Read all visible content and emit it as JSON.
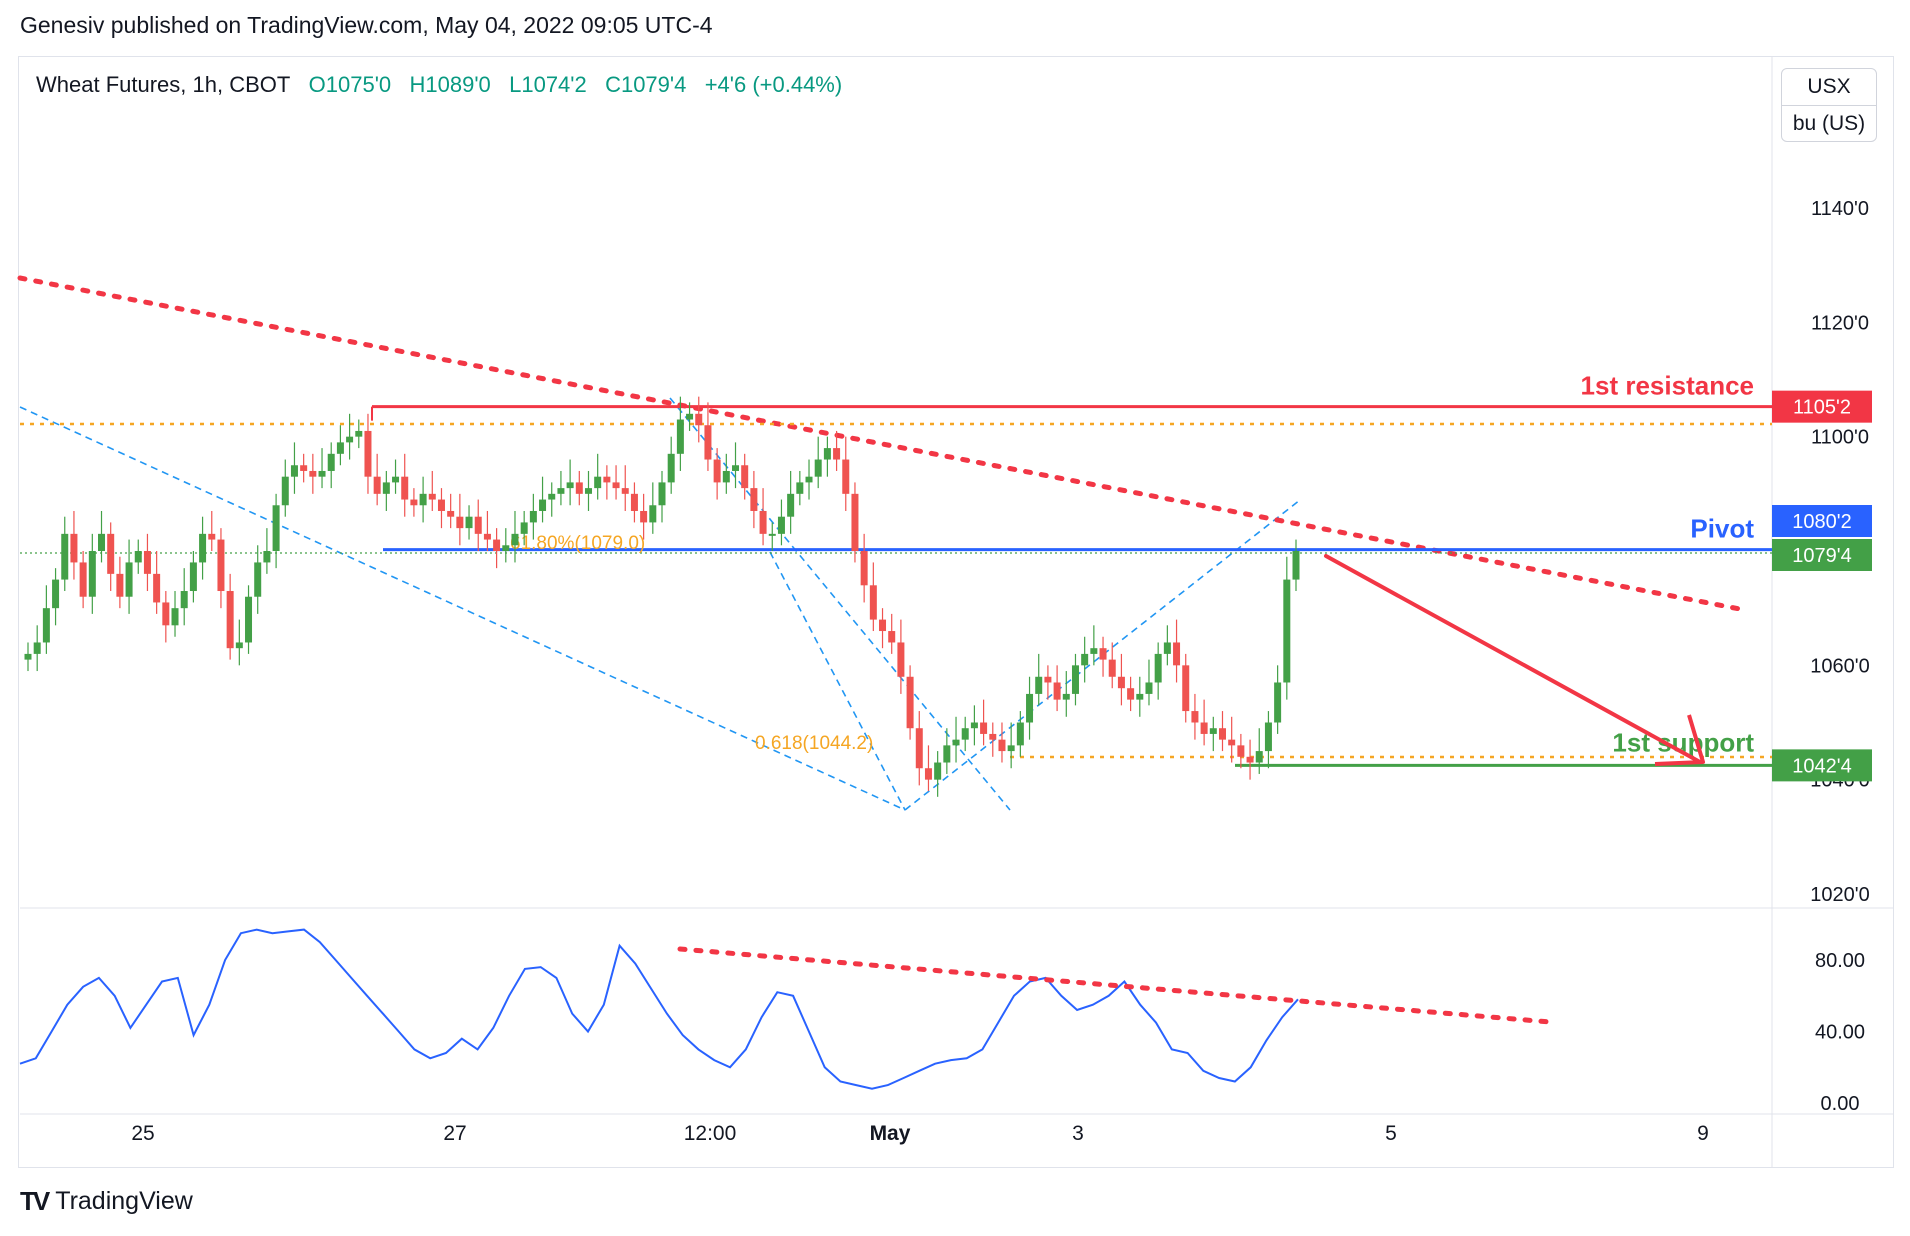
{
  "header": {
    "published": "Genesiv published on TradingView.com, May 04, 2022 09:05 UTC-4"
  },
  "legend": {
    "symbol": "Wheat Futures, 1h, CBOT",
    "open": "O1075'0",
    "high": "H1089'0",
    "low": "L1074'2",
    "close": "C1079'4",
    "change": "+4'6 (+0.44%)"
  },
  "unit_box": {
    "currency": "USX",
    "unit": "bu (US)"
  },
  "footer": {
    "brand": "TradingView"
  },
  "colors": {
    "up": "#43a047",
    "down": "#ef5350",
    "resistance": "#f23645",
    "pivot": "#2962ff",
    "support": "#43a047",
    "fib": "#f5a623",
    "trend": "#f23645",
    "rsi": "#2962ff",
    "dashed": "#2196f3"
  },
  "chart_data": [
    {
      "type": "candlestick",
      "title": "Wheat Futures, 1h, CBOT",
      "x_ticks": [
        "25",
        "27",
        "12:00",
        "May",
        "3",
        "5",
        "9"
      ],
      "y_ticks": [
        "1020'0",
        "1040'0",
        "1060'0",
        "1100'0",
        "1120'0",
        "1140'0"
      ],
      "ylim": [
        1018,
        1150
      ],
      "price_labels": [
        {
          "text": "1105'2",
          "value": 1105.25,
          "color": "#f23645"
        },
        {
          "text": "1080'2",
          "value": 1080.25,
          "color": "#2962ff"
        },
        {
          "text": "1079'4",
          "value": 1079.5,
          "color": "#43a047"
        },
        {
          "text": "1042'4",
          "value": 1042.5,
          "color": "#43a047"
        }
      ],
      "levels": [
        {
          "name": "1st resistance",
          "value": 1105.25,
          "color": "#f23645"
        },
        {
          "name": "Pivot",
          "value": 1080.25,
          "color": "#2962ff"
        },
        {
          "name": "1st support",
          "value": 1042.5,
          "color": "#43a047"
        }
      ],
      "fib_levels": [
        {
          "label": "61.80%(1079.0)",
          "value": 1079.0
        },
        {
          "label": "0.618(1044.2)",
          "value": 1044.25
        }
      ],
      "close_path": [
        1062,
        1064,
        1070,
        1075,
        1083,
        1078,
        1072,
        1080,
        1083,
        1076,
        1072,
        1078,
        1080,
        1076,
        1071,
        1067,
        1070,
        1073,
        1078,
        1083,
        1082,
        1073,
        1063,
        1064,
        1072,
        1078,
        1080,
        1088,
        1093,
        1095,
        1094,
        1093,
        1094,
        1097,
        1099,
        1100,
        1101,
        1093,
        1090,
        1092,
        1093,
        1089,
        1088,
        1090,
        1089,
        1087,
        1086,
        1084,
        1086,
        1083,
        1082,
        1080,
        1081,
        1083,
        1085,
        1087,
        1089,
        1090,
        1091,
        1092,
        1090,
        1091,
        1093,
        1092,
        1091,
        1090,
        1087,
        1085,
        1088,
        1092,
        1097,
        1103,
        1104,
        1102,
        1096,
        1092,
        1094,
        1095,
        1091,
        1087,
        1083,
        1083,
        1086,
        1090,
        1092,
        1093,
        1096,
        1098,
        1096,
        1090,
        1080,
        1074,
        1068,
        1066,
        1064,
        1058,
        1049,
        1042,
        1040,
        1043,
        1046,
        1047,
        1049,
        1050,
        1048,
        1047,
        1045,
        1046,
        1050,
        1055,
        1058,
        1057,
        1054,
        1055,
        1060,
        1062,
        1063,
        1061,
        1058,
        1056,
        1054,
        1055,
        1057,
        1062,
        1064,
        1060,
        1052,
        1050,
        1048,
        1049,
        1047,
        1046,
        1044,
        1043,
        1045,
        1050,
        1057,
        1075,
        1080
      ]
    },
    {
      "type": "line",
      "title": "RSI",
      "y_ticks": [
        "0.00",
        "40.00",
        "80.00"
      ],
      "ylim": [
        0,
        100
      ],
      "values": [
        22,
        25,
        40,
        55,
        65,
        70,
        60,
        42,
        55,
        68,
        70,
        38,
        55,
        80,
        95,
        97,
        95,
        96,
        97,
        90,
        80,
        70,
        60,
        50,
        40,
        30,
        25,
        28,
        36,
        30,
        42,
        60,
        75,
        76,
        70,
        50,
        40,
        55,
        88,
        78,
        64,
        50,
        38,
        30,
        24,
        20,
        30,
        48,
        62,
        60,
        40,
        20,
        12,
        10,
        8,
        10,
        14,
        18,
        22,
        24,
        25,
        30,
        45,
        60,
        68,
        70,
        60,
        52,
        55,
        60,
        68,
        55,
        45,
        30,
        28,
        18,
        14,
        12,
        20,
        35,
        48,
        58
      ]
    }
  ]
}
